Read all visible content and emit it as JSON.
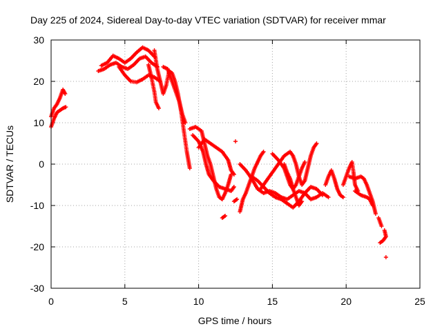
{
  "chart_data": {
    "type": "scatter",
    "title": "Day 225 of 2024, Sidereal Day-to-day VTEC variation (SDTVAR) for receiver mmar",
    "xlabel": "GPS time / hours",
    "ylabel": "SDTVAR / TECUs",
    "xlim": [
      0,
      25
    ],
    "ylim": [
      -30,
      30
    ],
    "xticks": [
      0,
      5,
      10,
      15,
      20,
      25
    ],
    "yticks": [
      -30,
      -20,
      -10,
      0,
      10,
      20,
      30
    ],
    "grid": true,
    "marker": "+",
    "color": "#ff0000",
    "tracks": [
      {
        "name": "track-1",
        "points": [
          [
            0,
            9
          ],
          [
            0.2,
            11
          ],
          [
            0.4,
            12.5
          ],
          [
            0.6,
            13
          ],
          [
            0.8,
            13.5
          ],
          [
            1.0,
            13.8
          ]
        ]
      },
      {
        "name": "track-2",
        "points": [
          [
            0,
            11.5
          ],
          [
            0.2,
            13.5
          ],
          [
            0.4,
            14.5
          ],
          [
            0.6,
            16
          ],
          [
            0.8,
            18
          ],
          [
            0.95,
            17
          ]
        ]
      },
      {
        "name": "track-3",
        "points": [
          [
            3.2,
            22.5
          ],
          [
            3.6,
            23
          ],
          [
            4.0,
            24
          ],
          [
            4.4,
            24.5
          ],
          [
            4.8,
            23.5
          ],
          [
            5.2,
            23
          ],
          [
            5.6,
            24
          ],
          [
            6.0,
            25.5
          ],
          [
            6.4,
            26
          ],
          [
            6.8,
            24.5
          ],
          [
            7.2,
            23.5
          ]
        ]
      },
      {
        "name": "track-4",
        "points": [
          [
            3.4,
            23.8
          ],
          [
            3.8,
            24.5
          ],
          [
            4.2,
            26.2
          ],
          [
            4.6,
            25.5
          ],
          [
            5.0,
            24.5
          ],
          [
            5.4,
            25.5
          ],
          [
            5.8,
            27
          ],
          [
            6.2,
            28.2
          ],
          [
            6.6,
            27.5
          ],
          [
            7.0,
            26
          ]
        ]
      },
      {
        "name": "track-5",
        "points": [
          [
            4.6,
            23.5
          ],
          [
            5.0,
            21.5
          ],
          [
            5.4,
            20
          ],
          [
            5.8,
            19.8
          ],
          [
            6.2,
            20.5
          ],
          [
            6.6,
            21.5
          ],
          [
            7.0,
            21
          ],
          [
            7.4,
            20
          ]
        ]
      },
      {
        "name": "track-6",
        "points": [
          [
            6.6,
            24
          ],
          [
            6.8,
            21
          ],
          [
            7.0,
            17.5
          ],
          [
            7.1,
            15
          ],
          [
            7.3,
            13.5
          ]
        ]
      },
      {
        "name": "track-7",
        "points": [
          [
            7.0,
            27.5
          ],
          [
            7.2,
            23
          ],
          [
            7.4,
            20
          ],
          [
            7.6,
            17
          ],
          [
            7.8,
            19
          ],
          [
            8.0,
            22.5
          ],
          [
            8.2,
            22
          ],
          [
            8.4,
            20
          ],
          [
            8.6,
            17
          ],
          [
            8.8,
            13
          ],
          [
            9.0,
            8
          ],
          [
            9.2,
            3
          ],
          [
            9.4,
            -1
          ]
        ]
      },
      {
        "name": "track-8",
        "points": [
          [
            7.6,
            23.5
          ],
          [
            7.9,
            23
          ],
          [
            8.1,
            21
          ],
          [
            8.3,
            19
          ],
          [
            8.5,
            17
          ],
          [
            8.7,
            15
          ],
          [
            8.9,
            12
          ],
          [
            9.1,
            10
          ]
        ]
      },
      {
        "name": "track-9",
        "points": [
          [
            9.4,
            8.5
          ],
          [
            9.8,
            9
          ],
          [
            10.2,
            8
          ],
          [
            10.4,
            5
          ],
          [
            10.6,
            2
          ],
          [
            10.8,
            0
          ],
          [
            11.0,
            -3
          ],
          [
            11.2,
            -6
          ],
          [
            11.4,
            -8
          ],
          [
            11.6,
            -8.5
          ],
          [
            11.8,
            -7
          ],
          [
            12.0,
            -5
          ],
          [
            12.2,
            -2.5
          ]
        ]
      },
      {
        "name": "track-10",
        "points": [
          [
            9.6,
            7
          ],
          [
            10.0,
            5.5
          ],
          [
            10.3,
            3
          ],
          [
            10.5,
            0
          ],
          [
            10.7,
            -2.5
          ],
          [
            11.0,
            -4
          ],
          [
            11.4,
            -5.5
          ],
          [
            11.8,
            -6
          ],
          [
            12.2,
            -6.5
          ],
          [
            12.4,
            -5.5
          ]
        ]
      },
      {
        "name": "track-11",
        "points": [
          [
            10.0,
            4
          ],
          [
            10.4,
            6
          ],
          [
            10.8,
            5
          ],
          [
            11.2,
            4
          ],
          [
            11.6,
            3
          ],
          [
            12.0,
            1
          ],
          [
            12.2,
            -1.5
          ],
          [
            12.4,
            -2.5
          ]
        ]
      },
      {
        "name": "track-12",
        "points": [
          [
            11.6,
            -13
          ],
          [
            11.8,
            -12.5
          ]
        ]
      },
      {
        "name": "track-13",
        "points": [
          [
            12.4,
            -9
          ],
          [
            12.6,
            -8.5
          ]
        ]
      },
      {
        "name": "track-14",
        "points": [
          [
            12.5,
            5.5
          ]
        ]
      },
      {
        "name": "track-15",
        "points": [
          [
            12.8,
            -11.5
          ],
          [
            12.9,
            -10
          ],
          [
            13.0,
            -8.5
          ],
          [
            13.2,
            -7
          ],
          [
            13.4,
            -5
          ],
          [
            13.6,
            -3
          ],
          [
            13.8,
            -1
          ],
          [
            14.0,
            0.5
          ],
          [
            14.2,
            2
          ],
          [
            14.4,
            3
          ]
        ]
      },
      {
        "name": "track-16",
        "points": [
          [
            12.8,
            0
          ],
          [
            13.2,
            -1.5
          ],
          [
            13.6,
            -3.5
          ],
          [
            14.0,
            -6
          ],
          [
            14.4,
            -7
          ],
          [
            14.8,
            -6.5
          ],
          [
            15.2,
            -7
          ],
          [
            15.6,
            -8
          ],
          [
            16.0,
            -8.5
          ],
          [
            16.4,
            -7.5
          ],
          [
            16.8,
            -6.5
          ],
          [
            17.2,
            -7
          ],
          [
            17.6,
            -8.5
          ],
          [
            18.0,
            -8
          ],
          [
            18.4,
            -7
          ],
          [
            18.8,
            -8
          ]
        ]
      },
      {
        "name": "track-17",
        "points": [
          [
            13.6,
            -3
          ],
          [
            14.0,
            -4
          ],
          [
            14.4,
            -5.5
          ],
          [
            14.8,
            -7
          ],
          [
            15.2,
            -8
          ],
          [
            15.6,
            -8.5
          ],
          [
            16.0,
            -9.5
          ],
          [
            16.4,
            -10.5
          ],
          [
            16.8,
            -9
          ],
          [
            17.2,
            -7
          ],
          [
            17.6,
            -5.5
          ],
          [
            18.0,
            -6
          ],
          [
            18.4,
            -7.5
          ]
        ]
      },
      {
        "name": "track-18",
        "points": [
          [
            14.2,
            -6
          ],
          [
            14.6,
            -4
          ],
          [
            15.0,
            -2
          ],
          [
            15.4,
            0
          ],
          [
            15.8,
            2
          ],
          [
            16.2,
            3
          ],
          [
            16.4,
            2
          ],
          [
            16.6,
            0
          ],
          [
            16.8,
            -3
          ],
          [
            17.0,
            -5
          ],
          [
            17.2,
            -4
          ],
          [
            17.4,
            -1
          ],
          [
            17.6,
            2
          ],
          [
            17.8,
            4
          ],
          [
            18.0,
            5
          ]
        ]
      },
      {
        "name": "track-19",
        "points": [
          [
            15.0,
            2.5
          ],
          [
            15.4,
            1
          ],
          [
            15.8,
            -1
          ],
          [
            16.0,
            -3
          ],
          [
            16.2,
            -5
          ],
          [
            16.4,
            -6
          ],
          [
            16.6,
            -5
          ],
          [
            16.8,
            -3
          ],
          [
            17.0,
            -1
          ],
          [
            17.2,
            0.5
          ]
        ]
      },
      {
        "name": "track-20",
        "points": [
          [
            15.8,
            0
          ],
          [
            16.0,
            -2
          ],
          [
            16.2,
            -3.5
          ],
          [
            16.4,
            -6
          ],
          [
            16.6,
            -8
          ],
          [
            16.8,
            -10
          ],
          [
            17.0,
            -9
          ]
        ]
      },
      {
        "name": "track-21",
        "points": [
          [
            18.6,
            -5
          ],
          [
            18.8,
            -3
          ],
          [
            19.0,
            -1.5
          ],
          [
            19.2,
            -3.5
          ],
          [
            19.4,
            -6
          ],
          [
            19.6,
            -7.5
          ],
          [
            19.8,
            -8
          ]
        ]
      },
      {
        "name": "track-22",
        "points": [
          [
            19.8,
            -5
          ],
          [
            20.0,
            -3
          ],
          [
            20.2,
            -1
          ],
          [
            20.4,
            0.5
          ],
          [
            20.5,
            -2
          ],
          [
            20.6,
            -5
          ],
          [
            20.8,
            -6.5
          ]
        ]
      },
      {
        "name": "track-23",
        "points": [
          [
            20.2,
            -3
          ],
          [
            20.6,
            -3.5
          ],
          [
            21.0,
            -3
          ],
          [
            21.2,
            -3.5
          ],
          [
            21.4,
            -5
          ],
          [
            21.6,
            -7
          ],
          [
            21.8,
            -9
          ],
          [
            22.0,
            -12
          ]
        ]
      },
      {
        "name": "track-24",
        "points": [
          [
            20.6,
            -6.5
          ],
          [
            21.0,
            -7.5
          ],
          [
            21.4,
            -8
          ],
          [
            21.6,
            -8.5
          ],
          [
            21.8,
            -10
          ]
        ]
      },
      {
        "name": "track-25",
        "points": [
          [
            22.2,
            -13
          ],
          [
            22.3,
            -14
          ],
          [
            22.4,
            -15
          ]
        ]
      },
      {
        "name": "track-26",
        "points": [
          [
            22.6,
            -16
          ],
          [
            22.7,
            -17.5
          ],
          [
            22.5,
            -18.5
          ],
          [
            22.3,
            -19
          ]
        ]
      },
      {
        "name": "track-27",
        "points": [
          [
            22.7,
            -22.5
          ]
        ]
      }
    ]
  }
}
